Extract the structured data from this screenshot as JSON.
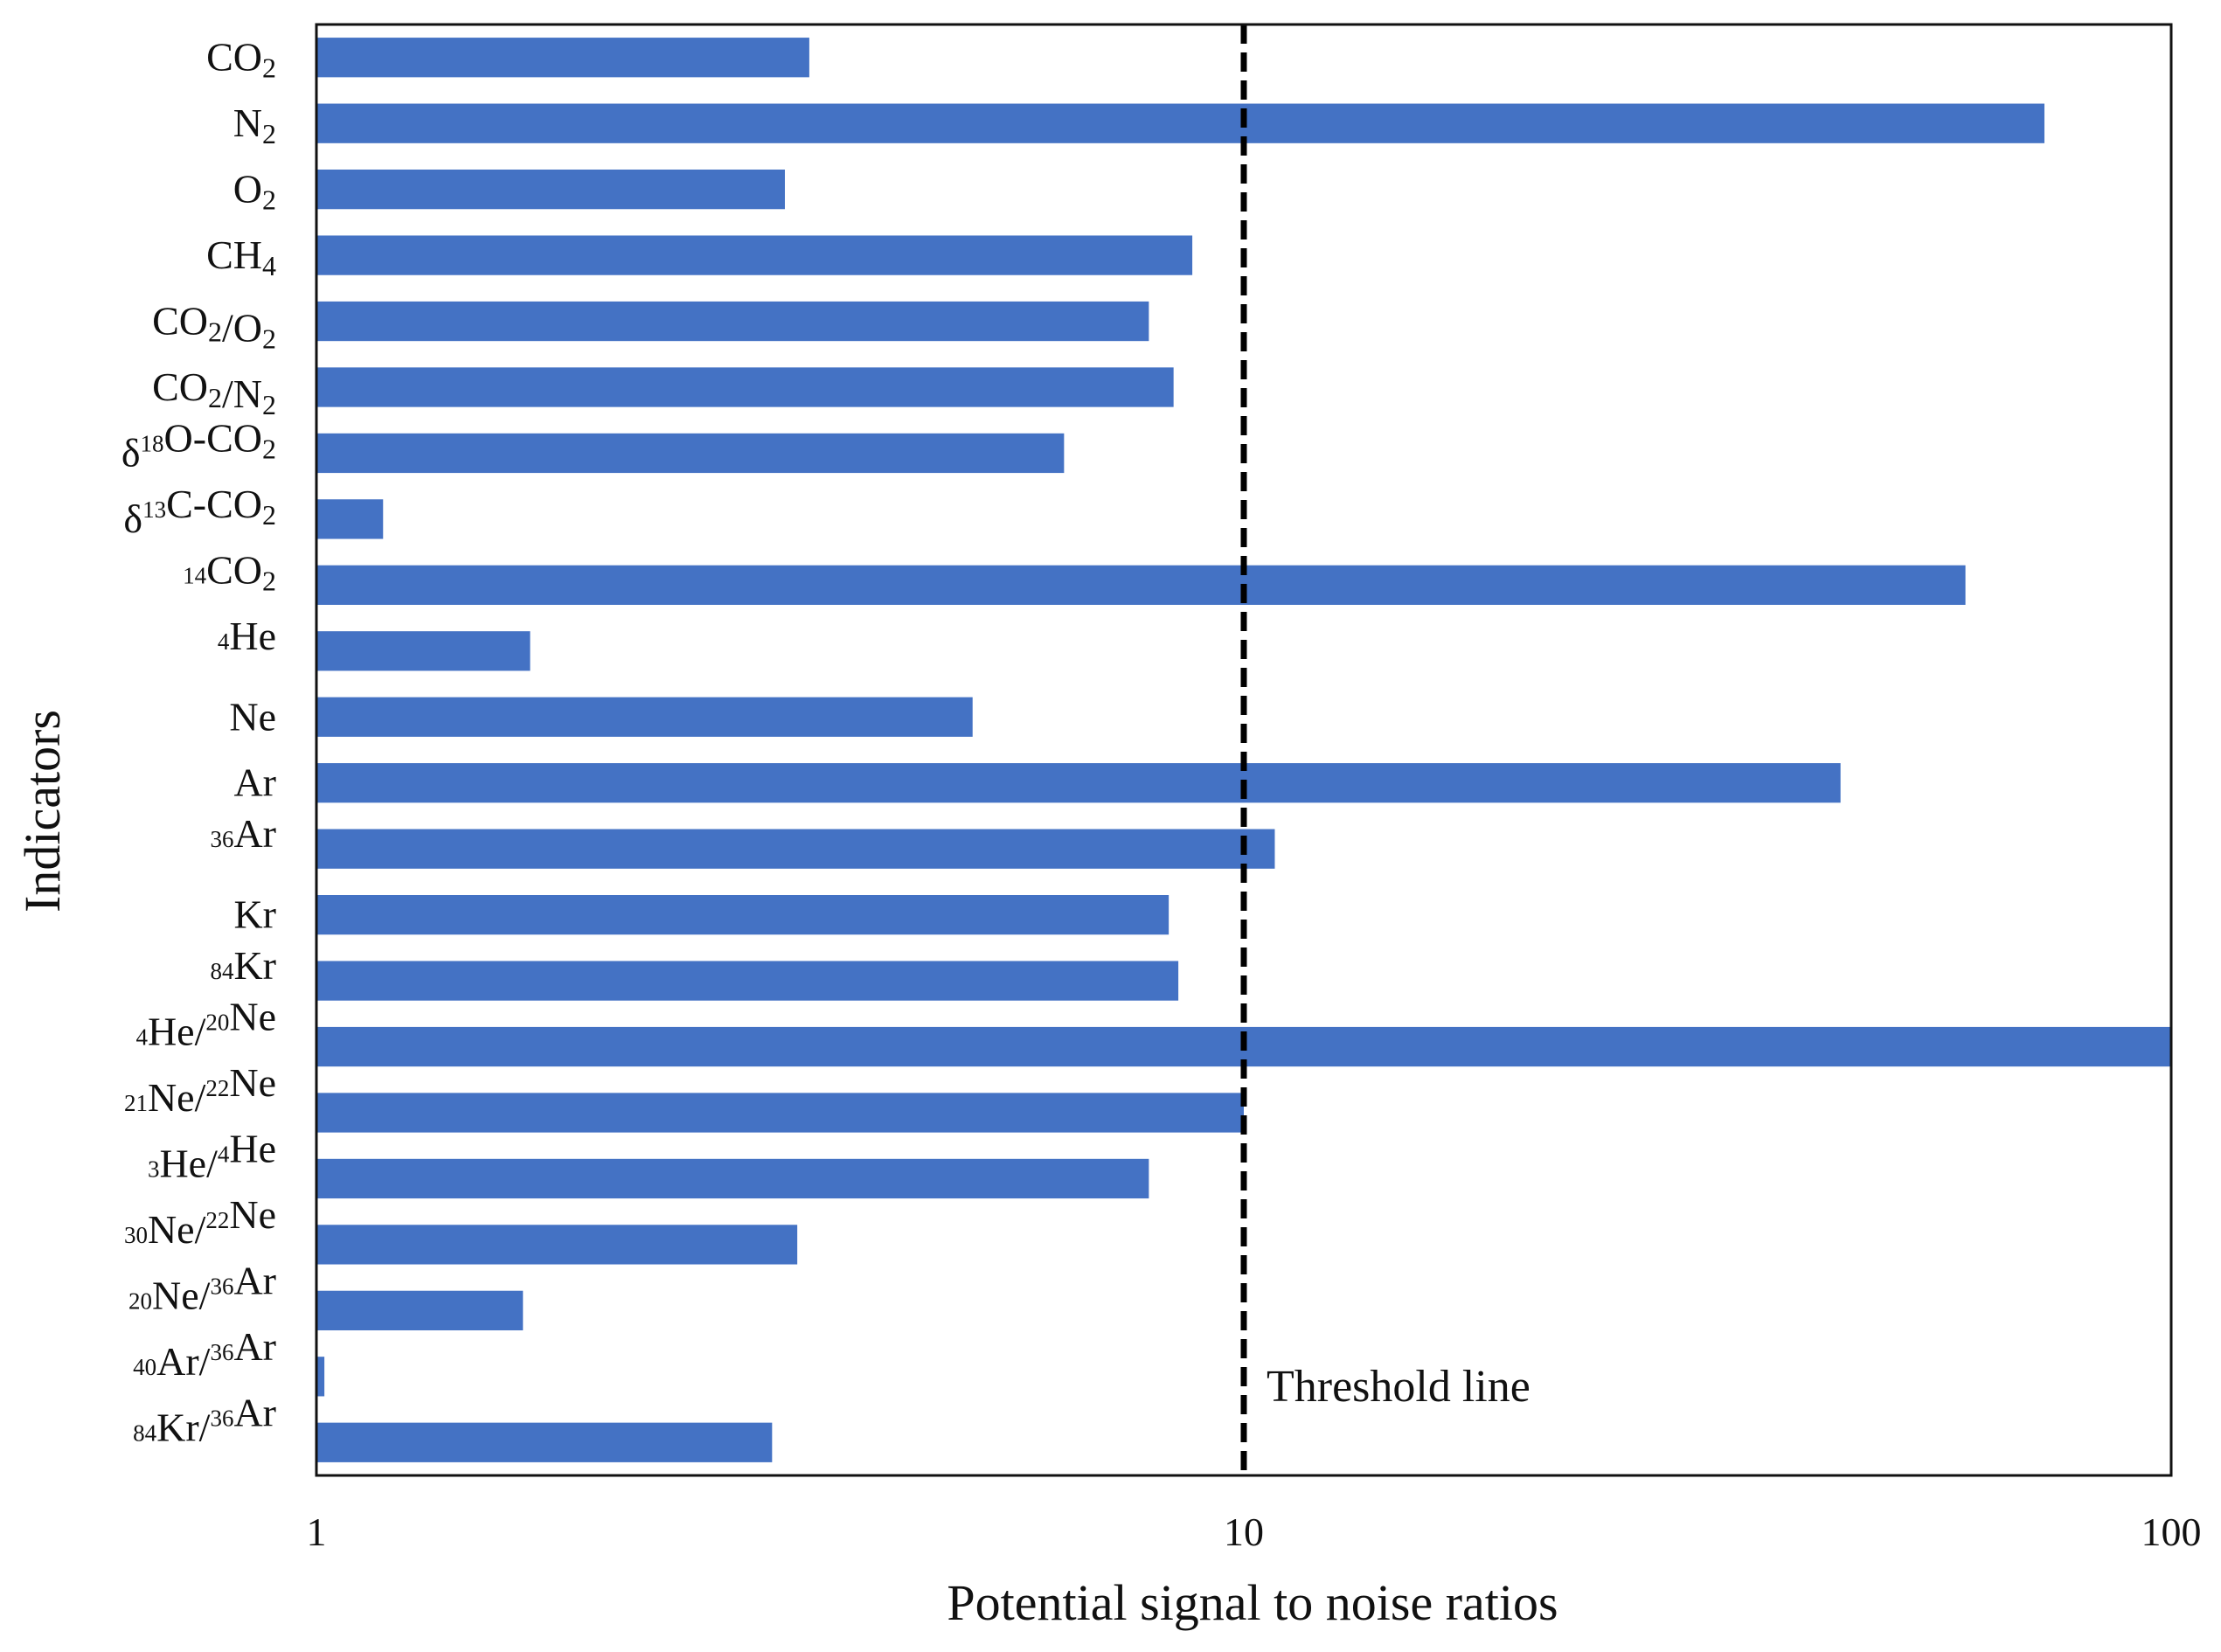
{
  "chart_data": {
    "type": "bar",
    "orientation": "horizontal",
    "xscale": "log",
    "xlim": [
      1,
      100
    ],
    "xticks": [
      "1",
      "10",
      "100"
    ],
    "xlabel": "Potential signal to noise ratios",
    "ylabel": "Indicators",
    "grid": false,
    "legend": "none",
    "bar_color": "#4472C4",
    "categories": [
      {
        "label": "CO₂",
        "parts": [
          [
            "n",
            "CO"
          ],
          [
            "sub",
            "2"
          ]
        ]
      },
      {
        "label": "N₂",
        "parts": [
          [
            "n",
            "N"
          ],
          [
            "sub",
            "2"
          ]
        ]
      },
      {
        "label": "O₂",
        "parts": [
          [
            "n",
            "O"
          ],
          [
            "sub",
            "2"
          ]
        ]
      },
      {
        "label": "CH₄",
        "parts": [
          [
            "n",
            "CH"
          ],
          [
            "sub",
            "4"
          ]
        ]
      },
      {
        "label": "CO₂/O₂",
        "parts": [
          [
            "n",
            "CO"
          ],
          [
            "sub",
            "2"
          ],
          [
            "n",
            "/O"
          ],
          [
            "sub",
            "2"
          ]
        ]
      },
      {
        "label": "CO₂/N₂",
        "parts": [
          [
            "n",
            "CO"
          ],
          [
            "sub",
            "2"
          ],
          [
            "n",
            "/N"
          ],
          [
            "sub",
            "2"
          ]
        ]
      },
      {
        "label": "δ¹⁸O-CO₂",
        "parts": [
          [
            "n",
            "δ"
          ],
          [
            "sup",
            "18"
          ],
          [
            "n",
            "O-CO"
          ],
          [
            "sub",
            "2"
          ]
        ]
      },
      {
        "label": "δ¹³C-CO₂",
        "parts": [
          [
            "n",
            "δ"
          ],
          [
            "sup",
            "13"
          ],
          [
            "n",
            "C-CO"
          ],
          [
            "sub",
            "2"
          ]
        ]
      },
      {
        "label": "¹⁴CO₂",
        "parts": [
          [
            "sup",
            "14"
          ],
          [
            "n",
            "CO"
          ],
          [
            "sub",
            "2"
          ]
        ]
      },
      {
        "label": "⁴He",
        "parts": [
          [
            "sup",
            "4"
          ],
          [
            "n",
            "He"
          ]
        ]
      },
      {
        "label": "Ne",
        "parts": [
          [
            "n",
            "Ne"
          ]
        ]
      },
      {
        "label": "Ar",
        "parts": [
          [
            "n",
            "Ar"
          ]
        ]
      },
      {
        "label": "³⁶Ar",
        "parts": [
          [
            "sup",
            "36"
          ],
          [
            "n",
            "Ar"
          ]
        ]
      },
      {
        "label": "Kr",
        "parts": [
          [
            "n",
            "Kr"
          ]
        ]
      },
      {
        "label": "⁸⁴Kr",
        "parts": [
          [
            "sup",
            "84"
          ],
          [
            "n",
            "Kr"
          ]
        ]
      },
      {
        "label": "⁴He/²⁰Ne",
        "parts": [
          [
            "sup",
            "4"
          ],
          [
            "n",
            "He/"
          ],
          [
            "sup",
            "20"
          ],
          [
            "n",
            "Ne"
          ]
        ]
      },
      {
        "label": "²¹Ne/²²Ne",
        "parts": [
          [
            "sup",
            "21"
          ],
          [
            "n",
            "Ne/"
          ],
          [
            "sup",
            "22"
          ],
          [
            "n",
            "Ne"
          ]
        ]
      },
      {
        "label": "³He/⁴He",
        "parts": [
          [
            "sup",
            "3"
          ],
          [
            "n",
            "He/"
          ],
          [
            "sup",
            "4"
          ],
          [
            "n",
            "He"
          ]
        ]
      },
      {
        "label": "³⁰Ne/²²Ne",
        "parts": [
          [
            "sup",
            "30"
          ],
          [
            "n",
            "Ne/"
          ],
          [
            "sup",
            "22"
          ],
          [
            "n",
            "Ne"
          ]
        ]
      },
      {
        "label": "²⁰Ne/³⁶Ar",
        "parts": [
          [
            "sup",
            "20"
          ],
          [
            "n",
            "Ne/"
          ],
          [
            "sup",
            "36"
          ],
          [
            "n",
            "Ar"
          ]
        ]
      },
      {
        "label": "⁴⁰Ar/³⁶Ar",
        "parts": [
          [
            "sup",
            "40"
          ],
          [
            "n",
            "Ar/"
          ],
          [
            "sup",
            "36"
          ],
          [
            "n",
            "Ar"
          ]
        ]
      },
      {
        "label": "⁸⁴Kr/³⁶Ar",
        "parts": [
          [
            "sup",
            "84"
          ],
          [
            "n",
            "Kr/"
          ],
          [
            "sup",
            "36"
          ],
          [
            "n",
            "Ar"
          ]
        ]
      }
    ],
    "values": [
      3.4,
      73,
      3.2,
      8.8,
      7.9,
      8.4,
      6.4,
      1.18,
      60,
      1.7,
      5.1,
      44,
      10.8,
      8.3,
      8.5,
      100,
      10,
      7.9,
      3.3,
      1.67,
      1.02,
      3.1
    ],
    "threshold": {
      "value": 10,
      "label": "Threshold line",
      "style": "dashed"
    }
  }
}
